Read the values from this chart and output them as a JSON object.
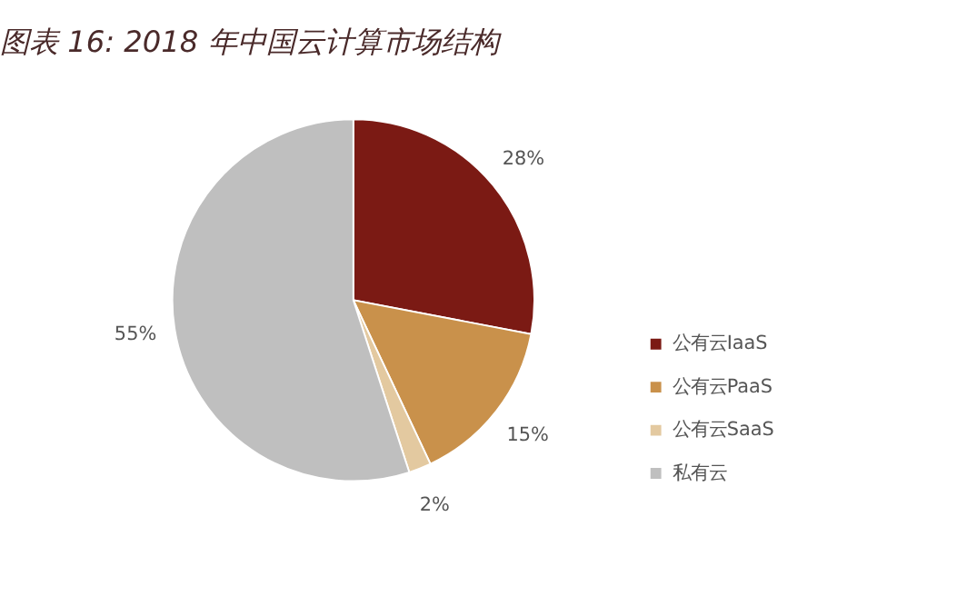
{
  "chart_data": {
    "type": "pie",
    "title": "图表 16: 2018 年中国云计算市场结构",
    "categories": [
      "公有云IaaS",
      "公有云PaaS",
      "公有云SaaS",
      "私有云"
    ],
    "values": [
      28,
      15,
      2,
      55
    ],
    "colors": [
      "#7b1a14",
      "#c9914b",
      "#e3c9a0",
      "#bfbfbf"
    ],
    "value_labels": [
      "28%",
      "15%",
      "2%",
      "55%"
    ],
    "legend": "right"
  }
}
